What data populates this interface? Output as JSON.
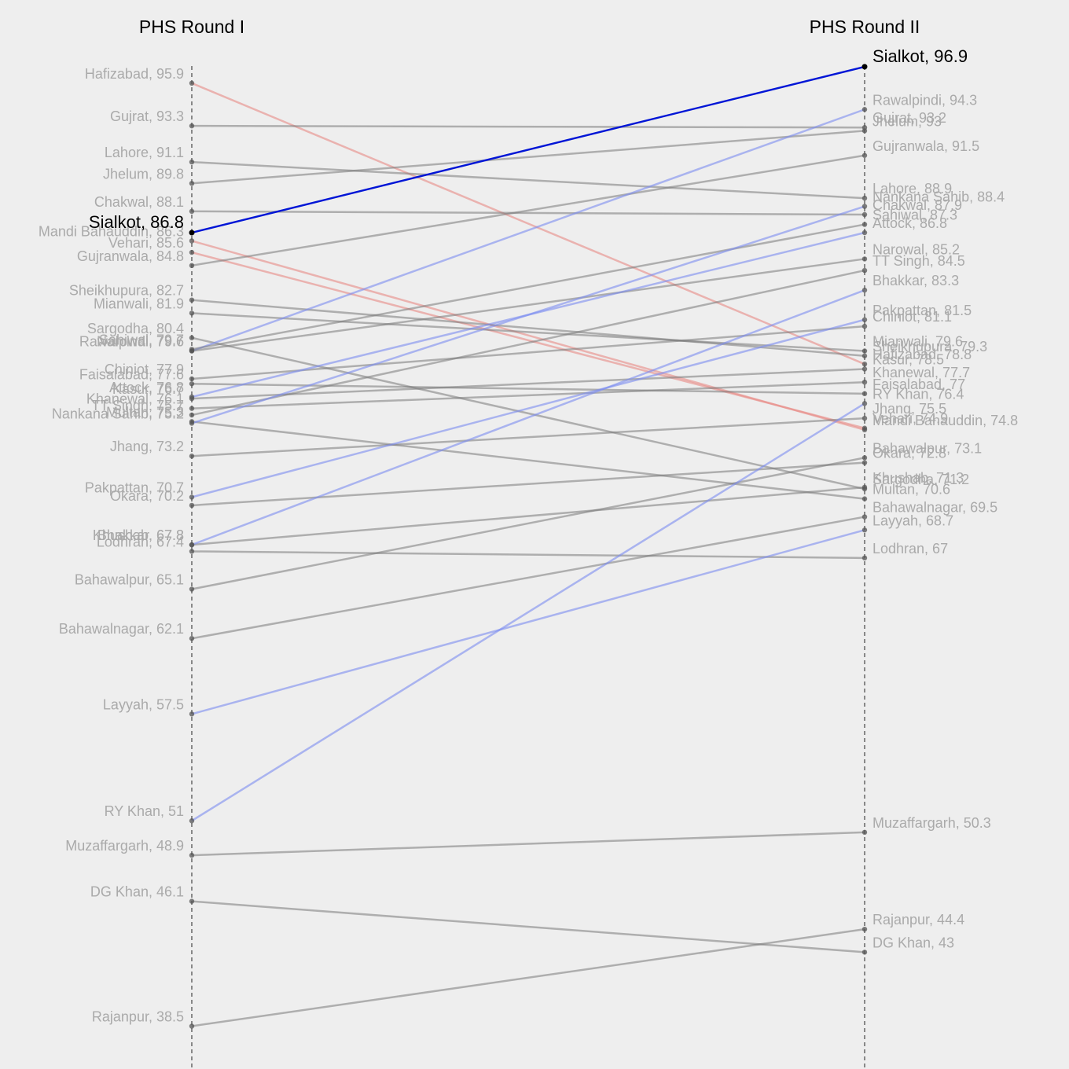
{
  "chart_data": {
    "type": "slope",
    "columns": [
      "PHS Round I",
      "PHS Round II"
    ],
    "highlight": "Sialkot",
    "colors": {
      "increase": "#7b8cf0",
      "decrease": "#e88a85",
      "neutral": "#7a7a7a",
      "highlight": "#0015d6",
      "axis": "#666666",
      "label": "#aaaaaa",
      "background": "#eeeeee"
    },
    "yrange": [
      42.5,
      97.5
    ],
    "rows": [
      {
        "name": "Sialkot",
        "v1": 86.8,
        "v2": 96.9,
        "trend": "highlight"
      },
      {
        "name": "Hafizabad",
        "v1": 95.9,
        "v2": 78.8,
        "trend": "down"
      },
      {
        "name": "Gujrat",
        "v1": 93.3,
        "v2": 93.2,
        "trend": "flat"
      },
      {
        "name": "Lahore",
        "v1": 91.1,
        "v2": 88.9,
        "trend": "flat"
      },
      {
        "name": "Jhelum",
        "v1": 89.8,
        "v2": 93,
        "trend": "flat"
      },
      {
        "name": "Chakwal",
        "v1": 88.1,
        "v2": 87.9,
        "trend": "flat"
      },
      {
        "name": "Mandi Bahauddin",
        "v1": 86.3,
        "v2": 74.8,
        "trend": "down"
      },
      {
        "name": "Vehari",
        "v1": 85.6,
        "v2": 74.9,
        "trend": "down"
      },
      {
        "name": "Gujranwala",
        "v1": 84.8,
        "v2": 91.5,
        "trend": "flat"
      },
      {
        "name": "Sheikhupura",
        "v1": 82.7,
        "v2": 79.3,
        "trend": "flat"
      },
      {
        "name": "Mianwali",
        "v1": 81.9,
        "v2": 79.6,
        "trend": "flat"
      },
      {
        "name": "Sargodha",
        "v1": 80.4,
        "v2": 71.2,
        "trend": "flat"
      },
      {
        "name": "Rawalpindi",
        "v1": 79.6,
        "v2": 94.3,
        "trend": "up"
      },
      {
        "name": "Sahiwal",
        "v1": 79.7,
        "v2": 87.3,
        "trend": "flat"
      },
      {
        "name": "Narowal",
        "v1": 79.6,
        "v2": 85.2,
        "trend": "flat"
      },
      {
        "name": "Chiniot",
        "v1": 77.9,
        "v2": 81.1,
        "trend": "flat"
      },
      {
        "name": "Faisalabad",
        "v1": 77.6,
        "v2": 77,
        "trend": "flat"
      },
      {
        "name": "Attock",
        "v1": 76.8,
        "v2": 86.8,
        "trend": "up"
      },
      {
        "name": "Kasur",
        "v1": 76.7,
        "v2": 78.5,
        "trend": "flat"
      },
      {
        "name": "Khanewal",
        "v1": 76.1,
        "v2": 77.7,
        "trend": "flat"
      },
      {
        "name": "TT Singh",
        "v1": 75.7,
        "v2": 84.5,
        "trend": "flat"
      },
      {
        "name": "Multan",
        "v1": 75.3,
        "v2": 70.6,
        "trend": "flat"
      },
      {
        "name": "Nankana Sahib",
        "v1": 75.2,
        "v2": 88.4,
        "trend": "up"
      },
      {
        "name": "Jhang",
        "v1": 73.2,
        "v2": 75.5,
        "trend": "flat"
      },
      {
        "name": "Pakpattan",
        "v1": 70.7,
        "v2": 81.5,
        "trend": "up"
      },
      {
        "name": "Okara",
        "v1": 70.2,
        "v2": 72.8,
        "trend": "flat"
      },
      {
        "name": "Khushab",
        "v1": 67.8,
        "v2": 71.3,
        "trend": "flat"
      },
      {
        "name": "Bhakkar",
        "v1": 67.8,
        "v2": 83.3,
        "trend": "up"
      },
      {
        "name": "Lodhran",
        "v1": 67.4,
        "v2": 67,
        "trend": "flat"
      },
      {
        "name": "Bahawalpur",
        "v1": 65.1,
        "v2": 73.1,
        "trend": "flat"
      },
      {
        "name": "Bahawalnagar",
        "v1": 62.1,
        "v2": 69.5,
        "trend": "flat"
      },
      {
        "name": "Layyah",
        "v1": 57.5,
        "v2": 68.7,
        "trend": "up"
      },
      {
        "name": "RY Khan",
        "v1": 51,
        "v2": 76.4,
        "trend": "up"
      },
      {
        "name": "Muzaffargarh",
        "v1": 48.9,
        "v2": 50.3,
        "trend": "flat"
      },
      {
        "name": "DG Khan",
        "v1": 46.1,
        "v2": 43,
        "trend": "flat"
      },
      {
        "name": "Rajanpur",
        "v1": 38.5,
        "v2": 44.4,
        "trend": "flat"
      }
    ]
  }
}
